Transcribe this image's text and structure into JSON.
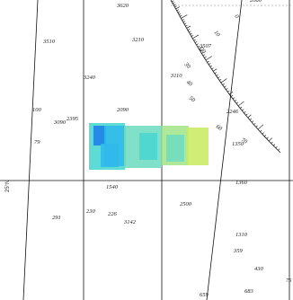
{
  "latitude_label": "25°N",
  "rose_labels": [
    "0",
    "10",
    "20",
    "30",
    "40",
    "50",
    "60",
    "70"
  ],
  "overlay": {
    "description": "bathymetry color overlay",
    "colors": [
      "#1e7fe8",
      "#2fb9ea",
      "#49d6d0",
      "#6fdcc0",
      "#a4e58b",
      "#c9ea62"
    ]
  },
  "soundings": [
    "3620",
    "2080",
    "3510",
    "3210",
    "3507",
    "3240",
    "3110",
    "2090",
    "2246",
    "2395",
    "3090",
    "1350",
    "1540",
    "1360",
    "2500",
    "3142",
    "291",
    "230",
    "226",
    "1310",
    "359",
    "430",
    "659",
    "683",
    "79",
    "100",
    "75"
  ]
}
